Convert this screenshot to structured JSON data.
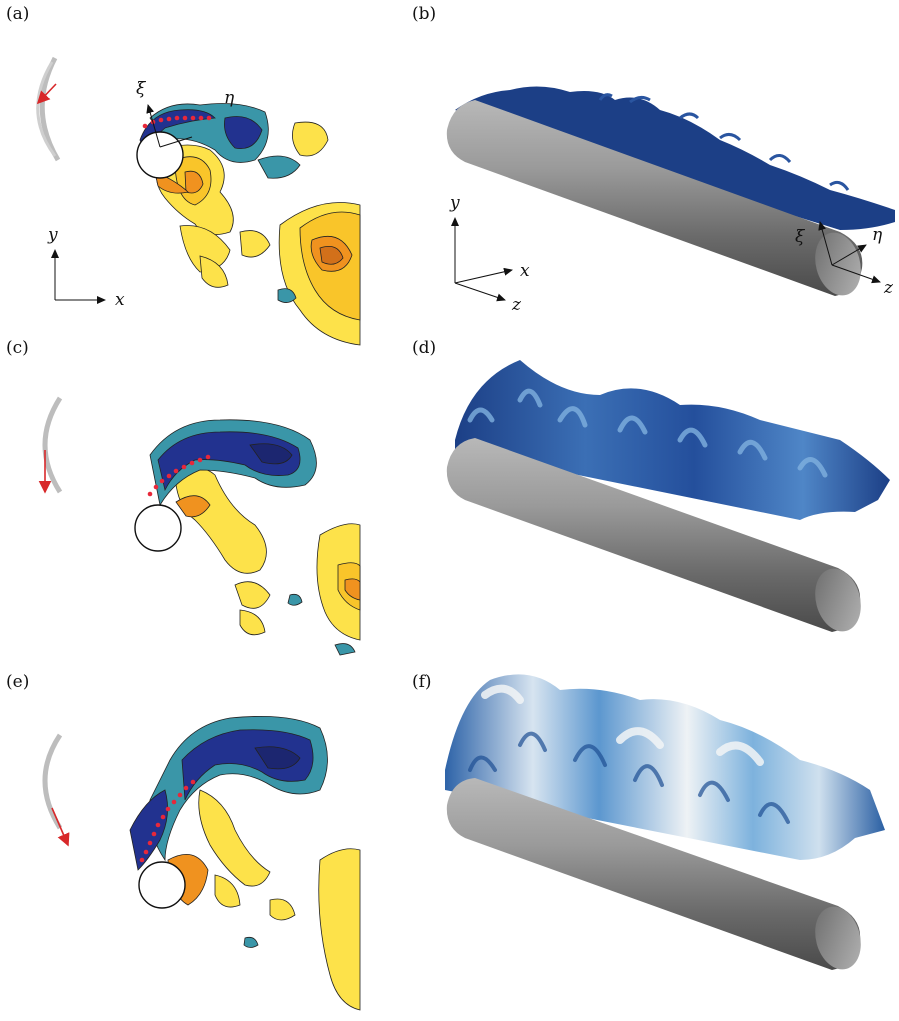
{
  "panels": [
    {
      "id": "a",
      "label": "(a)"
    },
    {
      "id": "b",
      "label": "(b)"
    },
    {
      "id": "c",
      "label": "(c)"
    },
    {
      "id": "d",
      "label": "(d)"
    },
    {
      "id": "e",
      "label": "(e)"
    },
    {
      "id": "f",
      "label": "(f)"
    }
  ],
  "axes2d": {
    "x": "x",
    "y": "y",
    "xi": "ξ",
    "eta": "η"
  },
  "axes3d": {
    "x": "x",
    "y": "y",
    "z": "z",
    "xi": "ξ",
    "eta": "η",
    "z2": "z"
  },
  "colors": {
    "dark_blue": "#22328f",
    "mid_blue": "#2a6aa8",
    "teal": "#3a96a8",
    "yellow": "#fde24a",
    "gold": "#f9c52a",
    "orange": "#f0921f",
    "cylinder_gray": "#8a8a8a",
    "marker_red": "#e8283a",
    "arrow_red": "#d8282a",
    "trajectory_gray": "#bdbdbd"
  }
}
